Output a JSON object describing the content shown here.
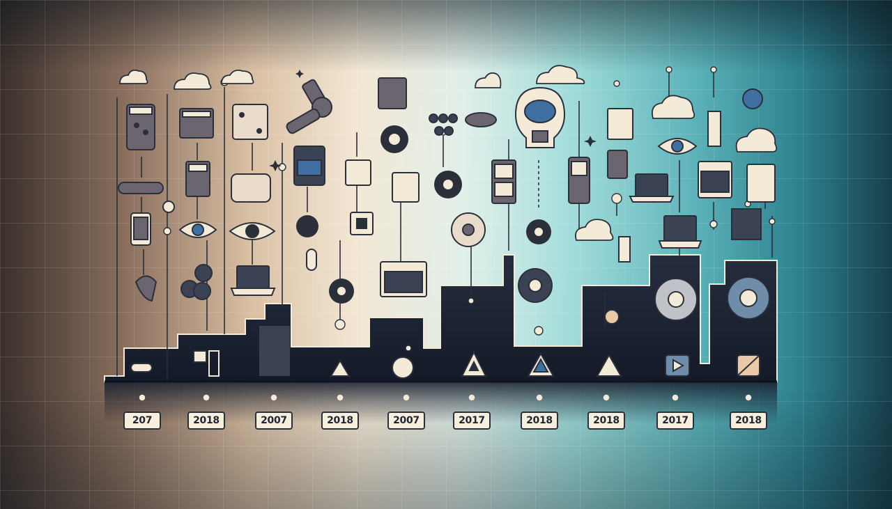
{
  "timeline": {
    "year_labels": [
      "207",
      "2018",
      "2007",
      "2018",
      "2007",
      "2017",
      "2018",
      "2018",
      "2017",
      "2018"
    ]
  },
  "colors": {
    "bar_fill": "#1c2333",
    "icon_stroke": "#2a2f3a",
    "label_fill": "#f7efdd",
    "accent": "#3f6fa0"
  },
  "icons": [
    "cloud-icon",
    "gear-icon",
    "eye-icon",
    "laptop-icon",
    "brain-bulb-icon",
    "document-icon",
    "server-icon",
    "network-node-icon",
    "flower-icon",
    "triangle-icon",
    "play-icon",
    "robot-arm-icon"
  ]
}
